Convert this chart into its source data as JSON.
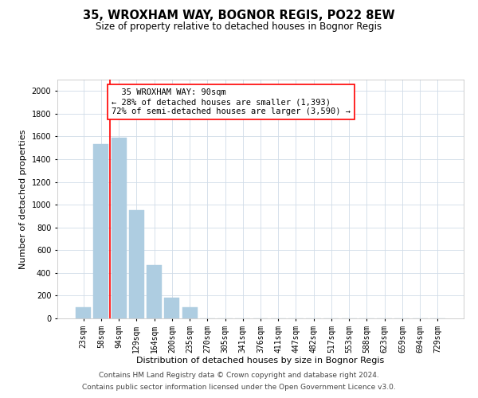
{
  "title": "35, WROXHAM WAY, BOGNOR REGIS, PO22 8EW",
  "subtitle": "Size of property relative to detached houses in Bognor Regis",
  "xlabel": "Distribution of detached houses by size in Bognor Regis",
  "ylabel": "Number of detached properties",
  "bar_labels": [
    "23sqm",
    "58sqm",
    "94sqm",
    "129sqm",
    "164sqm",
    "200sqm",
    "235sqm",
    "270sqm",
    "305sqm",
    "341sqm",
    "376sqm",
    "411sqm",
    "447sqm",
    "482sqm",
    "517sqm",
    "553sqm",
    "588sqm",
    "623sqm",
    "659sqm",
    "694sqm",
    "729sqm"
  ],
  "bar_values": [
    100,
    1530,
    1590,
    950,
    470,
    185,
    100,
    0,
    0,
    0,
    0,
    0,
    0,
    0,
    0,
    0,
    0,
    0,
    0,
    0,
    0
  ],
  "bar_color": "#aecde1",
  "bar_edge_color": "#aecde1",
  "vline_color": "red",
  "vline_x": 1.5,
  "annotation_text": "  35 WROXHAM WAY: 90sqm\n← 28% of detached houses are smaller (1,393)\n72% of semi-detached houses are larger (3,590) →",
  "ylim": [
    0,
    2100
  ],
  "yticks": [
    0,
    200,
    400,
    600,
    800,
    1000,
    1200,
    1400,
    1600,
    1800,
    2000
  ],
  "grid_color": "#d0dce8",
  "footer_line1": "Contains HM Land Registry data © Crown copyright and database right 2024.",
  "footer_line2": "Contains public sector information licensed under the Open Government Licence v3.0.",
  "title_fontsize": 10.5,
  "subtitle_fontsize": 8.5,
  "xlabel_fontsize": 8,
  "ylabel_fontsize": 8,
  "tick_fontsize": 7,
  "annotation_fontsize": 7.5,
  "footer_fontsize": 6.5
}
